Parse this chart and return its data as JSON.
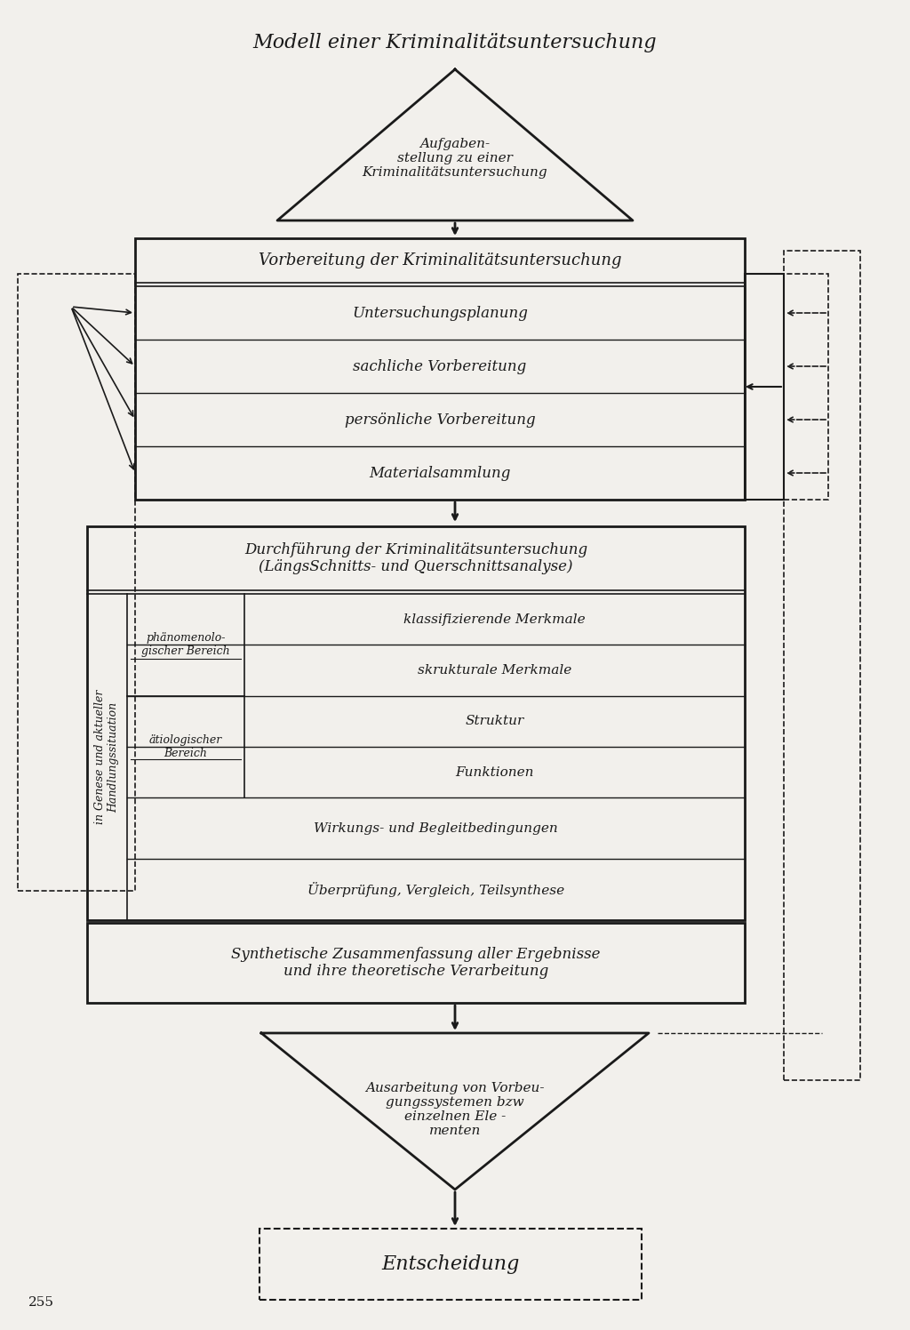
{
  "title": "Modell einer Kriminalitätsuntersuchung",
  "page_number": "255",
  "bg_color": "#f2f0ec",
  "text_color": "#1a1a1a",
  "font_family": "serif",
  "triangle1_text": "Aufgaben-\nstellung zu einer\nKriminalitätsuntersuchung",
  "box1_title": "Vorbereitung der Kriminalitätsuntersuchung",
  "box1_rows": [
    "Untersuchungsplanung",
    "sachliche Vorbereitung",
    "persönliche Vorbereitung",
    "Materialsammlung"
  ],
  "box2_title": "Durchführung der Kriminalitätsuntersuchung\n(LängsSchnitts- und Querschnittsanalyse)",
  "side_label": "in Genese und aktueller\nHandlungssituation",
  "phano_label": "phänomenolo-\ngischer Bereich",
  "atio_label": "ätiologischer\nBereich",
  "right_cells": [
    "klassifizierende Merkmale",
    "skrukturale Merkmale",
    "Struktur",
    "Funktionen"
  ],
  "row_wirkung": "Wirkungs- und Begleitbedingungen",
  "row_ueber": "Überprüfung, Vergleich, Teilsynthese",
  "synth_text": "Synthetische Zusammenfassung aller Ergebnisse\nund ihre theoretische Verarbeitung",
  "triangle2_text": "Ausarbeitung von Vorbeu-\ngungssystemen bzw\neinzelnen Ele -\nmenten",
  "entsch_text": "Entscheidung"
}
